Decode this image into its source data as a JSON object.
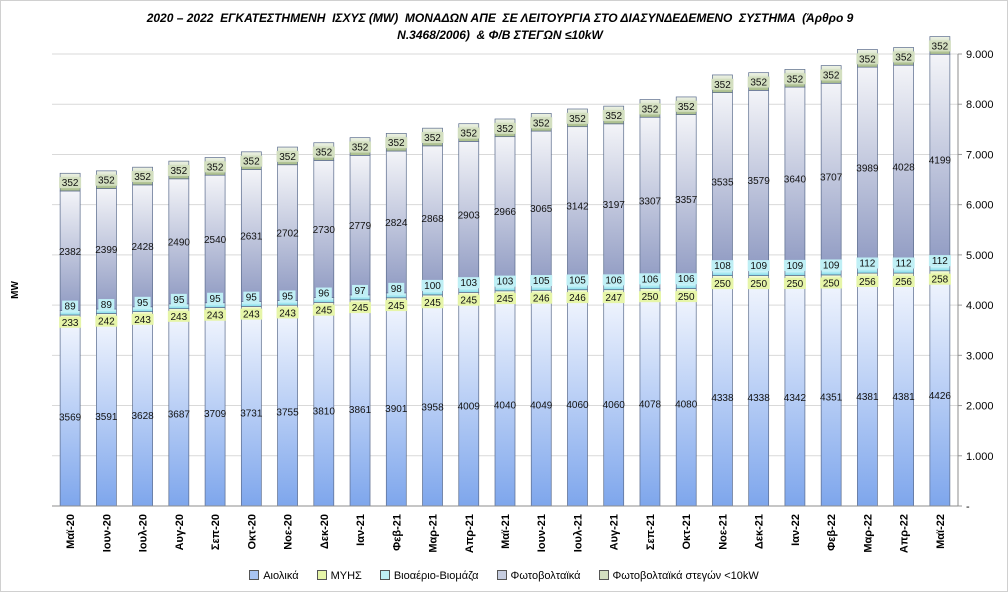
{
  "title": {
    "line1": "2020 – 2022  ΕΓΚΑΤΕΣΤΗΜΕΝΗ  ΙΣΧΥΣ (MW)  ΜΟΝΑΔΩΝ ΑΠΕ  ΣΕ ΛΕΙΤΟΥΡΓΙΑ ΣΤΟ ΔΙΑΣΥΝΔΕΔΕΜΕΝΟ  ΣΥΣΤΗΜΑ  (Άρθρο 9",
    "line2": "Ν.3468/2006)  & Φ/Β ΣΤΕΓΩΝ ≤10kW"
  },
  "chart_data": {
    "type": "bar",
    "stacked": true,
    "ylabel": "MW",
    "ylim": [
      0,
      9000
    ],
    "y_ticks": [
      "-",
      "1.000",
      "2.000",
      "3.000",
      "4.000",
      "5.000",
      "6.000",
      "7.000",
      "8.000",
      "9.000"
    ],
    "y_axis_side": "right",
    "grid": true,
    "legend_position": "bottom",
    "categories": [
      "Μαϊ-20",
      "Ιουν-20",
      "Ιουλ-20",
      "Αυγ-20",
      "Σεπ-20",
      "Οκτ-20",
      "Νοε-20",
      "Δεκ-20",
      "Ιαν-21",
      "Φεβ-21",
      "Μαρ-21",
      "Απρ-21",
      "Μαϊ-21",
      "Ιουν-21",
      "Ιουλ-21",
      "Αυγ-21",
      "Σεπ-21",
      "Οκτ-21",
      "Νοε-21",
      "Δεκ-21",
      "Ιαν-22",
      "Φεβ-22",
      "Μαρ-22",
      "Απρ-22",
      "Μαϊ-22"
    ],
    "series": [
      {
        "name": "Αιολικά",
        "color": "#a8c4f2",
        "values": [
          3569,
          3591,
          3628,
          3687,
          3709,
          3731,
          3755,
          3810,
          3861,
          3901,
          3958,
          4009,
          4040,
          4049,
          4060,
          4060,
          4078,
          4080,
          4338,
          4338,
          4342,
          4351,
          4381,
          4381,
          4426
        ]
      },
      {
        "name": "ΜΥΗΣ",
        "color": "#e6f5a8",
        "values": [
          233,
          242,
          243,
          243,
          243,
          243,
          243,
          245,
          245,
          245,
          245,
          245,
          245,
          246,
          246,
          247,
          250,
          250,
          250,
          250,
          250,
          250,
          256,
          256,
          258
        ]
      },
      {
        "name": "Βιοαέριο-Βιομάζα",
        "color": "#bfeff5",
        "values": [
          89,
          89,
          95,
          95,
          95,
          95,
          95,
          96,
          97,
          98,
          100,
          103,
          103,
          105,
          105,
          106,
          106,
          106,
          108,
          109,
          109,
          109,
          112,
          112,
          112
        ]
      },
      {
        "name": "Φωτοβολταϊκά",
        "color": "#c6cde0",
        "values": [
          2382,
          2399,
          2428,
          2490,
          2540,
          2631,
          2702,
          2730,
          2779,
          2824,
          2868,
          2903,
          2966,
          3065,
          3142,
          3197,
          3307,
          3357,
          3535,
          3579,
          3640,
          3707,
          3989,
          4028,
          4199
        ]
      },
      {
        "name": "Φωτοβολταϊκά στεγών <10kW",
        "color": "#d3dfc0",
        "values": [
          352,
          352,
          352,
          352,
          352,
          352,
          352,
          352,
          352,
          352,
          352,
          352,
          352,
          352,
          352,
          352,
          352,
          352,
          352,
          352,
          352,
          352,
          352,
          352,
          352
        ]
      }
    ]
  }
}
